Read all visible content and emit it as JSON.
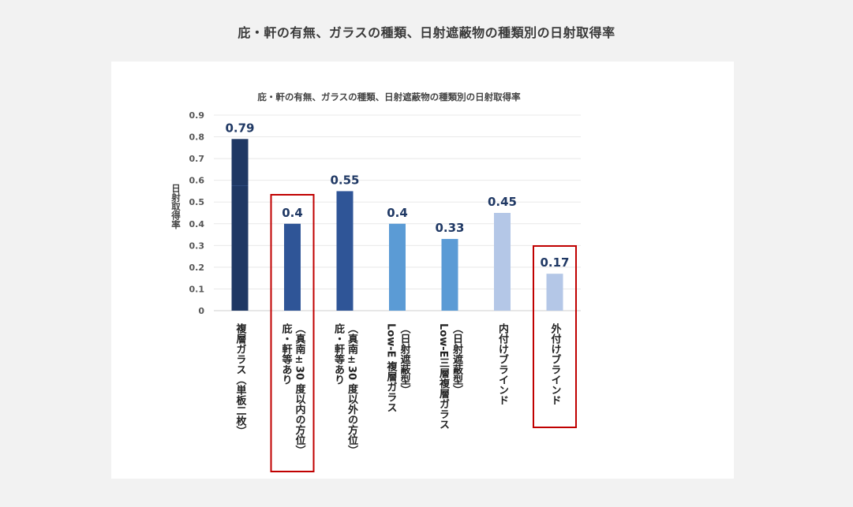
{
  "page": {
    "title": "庇・軒の有無、ガラスの種類、日射遮蔽物の種類別の日射取得率"
  },
  "chart_data": {
    "type": "bar",
    "title": "庇・軒の有無、ガラスの種類、日射遮蔽物の種類別の日射取得率",
    "xlabel": "",
    "ylabel": "日射取得率",
    "ylim": [
      0,
      0.9
    ],
    "yticks": [
      "0",
      "0.1",
      "0.2",
      "0.3",
      "0.4",
      "0.5",
      "0.6",
      "0.7",
      "0.8",
      "0.9"
    ],
    "grid": true,
    "categories": [
      [
        "複層ガラス（単板二枚）"
      ],
      [
        "庇・軒等あり",
        "（真南±30 度以内の方位）"
      ],
      [
        "庇・軒等あり",
        "（真南±30 度以外の方位）"
      ],
      [
        "Low-E 複層ガラス",
        "（日射遮蔽型）"
      ],
      [
        "Low-E三層複層ガラス",
        "（日射遮蔽型）"
      ],
      [
        "内付けブラインド"
      ],
      [
        "外付けブラインド"
      ]
    ],
    "values": [
      0.79,
      0.4,
      0.55,
      0.4,
      0.33,
      0.45,
      0.17
    ],
    "value_labels": [
      "0.79",
      "0.4",
      "0.55",
      "0.4",
      "0.33",
      "0.45",
      "0.17"
    ],
    "colors": [
      "#1f3864",
      "#2f5597",
      "#2f5597",
      "#5b9bd5",
      "#5b9bd5",
      "#b4c7e7",
      "#b4c7e7"
    ],
    "highlighted": [
      false,
      true,
      false,
      false,
      false,
      false,
      true
    ],
    "highlight_color": "#c00000"
  }
}
